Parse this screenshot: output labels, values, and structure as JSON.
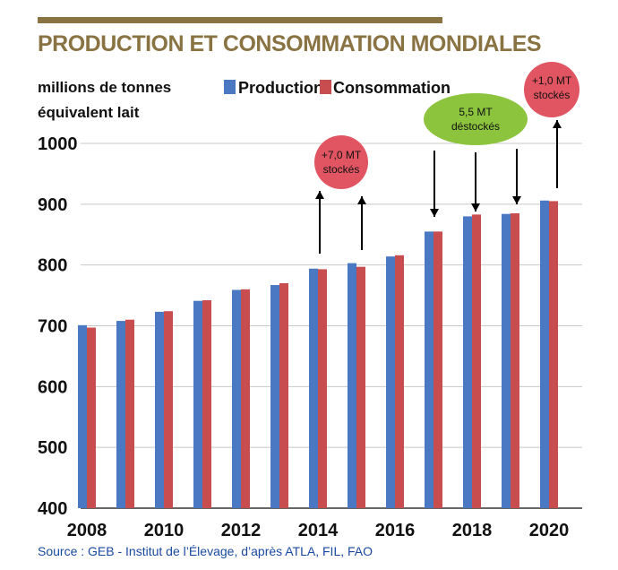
{
  "chart_data": {
    "type": "bar",
    "title": "PRODUCTION ET CONSOMMATION MONDIALES",
    "unit_label_line1": "millions de tonnes",
    "unit_label_line2": "équivalent lait",
    "categories": [
      "2008",
      "2009",
      "2010",
      "2011",
      "2012",
      "2013",
      "2014",
      "2015",
      "2016",
      "2017",
      "2018",
      "2019",
      "2020"
    ],
    "x_tick_labels": [
      "2008",
      "2010",
      "2012",
      "2014",
      "2016",
      "2018",
      "2020"
    ],
    "y_tick_labels": [
      "400",
      "500",
      "600",
      "700",
      "800",
      "900",
      "1000"
    ],
    "ylim": [
      400,
      1000
    ],
    "grid": true,
    "legend_position": "top",
    "series": [
      {
        "name": "Production",
        "color": "#4a78c2",
        "values": [
          701,
          708,
          723,
          741,
          759,
          767,
          794,
          803,
          814,
          855,
          880,
          884,
          906
        ]
      },
      {
        "name": "Consommation",
        "color": "#c84d4f",
        "values": [
          697,
          710,
          724,
          742,
          760,
          770,
          793,
          797,
          816,
          855,
          883,
          885,
          905
        ]
      }
    ],
    "annotations": [
      {
        "line1": "+7,0 MT",
        "line2": "stockés",
        "color": "#e05561"
      },
      {
        "line1": "5,5 MT",
        "line2": "déstockés",
        "color": "#8cc43e"
      },
      {
        "line1": "+1,0 MT",
        "line2": "stockés",
        "color": "#e05561"
      }
    ],
    "source": "Source : GEB - Institut de l’Élevage, d’après ATLA, FIL, FAO"
  }
}
